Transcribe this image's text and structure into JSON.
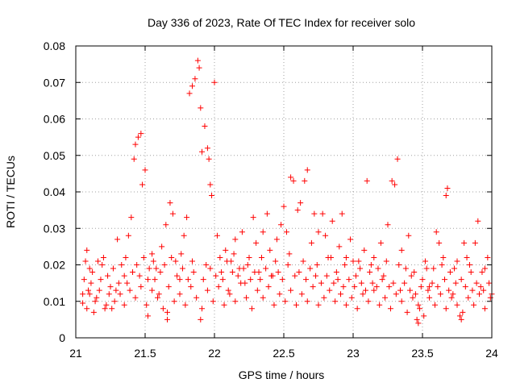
{
  "chart_data": {
    "type": "scatter",
    "title": "Day 336 of 2023, Rate Of TEC Index for receiver solo",
    "xlabel": "GPS time / hours",
    "ylabel": "ROTI / TECUs",
    "xlim": [
      21,
      24
    ],
    "ylim": [
      0,
      0.08
    ],
    "grid": true,
    "marker": "+",
    "color": "#ff0000",
    "xticks": [
      "21",
      "21.5",
      "22",
      "22.5",
      "23",
      "23.5",
      "24"
    ],
    "yticks": [
      "0",
      "0.01",
      "0.02",
      "0.03",
      "0.04",
      "0.05",
      "0.06",
      "0.07",
      "0.08"
    ],
    "series": [
      {
        "name": "ROTI",
        "points": [
          [
            21.05,
            0.0095
          ],
          [
            21.07,
            0.021
          ],
          [
            21.08,
            0.024
          ],
          [
            21.1,
            0.012
          ],
          [
            21.12,
            0.018
          ],
          [
            21.15,
            0.011
          ],
          [
            21.18,
            0.016
          ],
          [
            21.2,
            0.022
          ],
          [
            21.22,
            0.009
          ],
          [
            21.25,
            0.014
          ],
          [
            21.27,
            0.019
          ],
          [
            21.3,
            0.027
          ],
          [
            21.32,
            0.012
          ],
          [
            21.35,
            0.017
          ],
          [
            21.38,
            0.028
          ],
          [
            21.4,
            0.033
          ],
          [
            21.42,
            0.049
          ],
          [
            21.43,
            0.053
          ],
          [
            21.45,
            0.055
          ],
          [
            21.47,
            0.056
          ],
          [
            21.48,
            0.042
          ],
          [
            21.5,
            0.046
          ],
          [
            21.52,
            0.016
          ],
          [
            21.55,
            0.023
          ],
          [
            21.58,
            0.019
          ],
          [
            21.6,
            0.012
          ],
          [
            21.62,
            0.025
          ],
          [
            21.65,
            0.031
          ],
          [
            21.68,
            0.037
          ],
          [
            21.7,
            0.034
          ],
          [
            21.72,
            0.021
          ],
          [
            21.75,
            0.016
          ],
          [
            21.78,
            0.028
          ],
          [
            21.8,
            0.033
          ],
          [
            21.82,
            0.067
          ],
          [
            21.84,
            0.069
          ],
          [
            21.86,
            0.071
          ],
          [
            21.88,
            0.076
          ],
          [
            21.89,
            0.074
          ],
          [
            21.9,
            0.063
          ],
          [
            21.91,
            0.051
          ],
          [
            21.93,
            0.058
          ],
          [
            21.95,
            0.052
          ],
          [
            21.96,
            0.049
          ],
          [
            21.97,
            0.042
          ],
          [
            21.98,
            0.039
          ],
          [
            22.0,
            0.07
          ],
          [
            22.02,
            0.028
          ],
          [
            22.05,
            0.018
          ],
          [
            22.08,
            0.024
          ],
          [
            22.1,
            0.013
          ],
          [
            22.12,
            0.021
          ],
          [
            22.15,
            0.027
          ],
          [
            22.18,
            0.019
          ],
          [
            22.2,
            0.029
          ],
          [
            22.22,
            0.015
          ],
          [
            22.25,
            0.022
          ],
          [
            22.28,
            0.033
          ],
          [
            22.3,
            0.026
          ],
          [
            22.32,
            0.018
          ],
          [
            22.35,
            0.029
          ],
          [
            22.38,
            0.034
          ],
          [
            22.4,
            0.024
          ],
          [
            22.42,
            0.017
          ],
          [
            22.45,
            0.027
          ],
          [
            22.48,
            0.031
          ],
          [
            22.5,
            0.036
          ],
          [
            22.52,
            0.029
          ],
          [
            22.55,
            0.044
          ],
          [
            22.57,
            0.043
          ],
          [
            22.6,
            0.035
          ],
          [
            22.62,
            0.037
          ],
          [
            22.65,
            0.043
          ],
          [
            22.67,
            0.046
          ],
          [
            22.7,
            0.026
          ],
          [
            22.72,
            0.034
          ],
          [
            22.75,
            0.029
          ],
          [
            22.78,
            0.034
          ],
          [
            22.8,
            0.028
          ],
          [
            22.82,
            0.022
          ],
          [
            22.85,
            0.032
          ],
          [
            22.88,
            0.018
          ],
          [
            22.9,
            0.025
          ],
          [
            22.92,
            0.034
          ],
          [
            22.95,
            0.022
          ],
          [
            22.98,
            0.027
          ],
          [
            23.0,
            0.021
          ],
          [
            23.02,
            0.017
          ],
          [
            23.05,
            0.019
          ],
          [
            23.08,
            0.024
          ],
          [
            23.1,
            0.043
          ],
          [
            23.12,
            0.018
          ],
          [
            23.15,
            0.022
          ],
          [
            23.18,
            0.019
          ],
          [
            23.2,
            0.026
          ],
          [
            23.22,
            0.017
          ],
          [
            23.25,
            0.031
          ],
          [
            23.28,
            0.043
          ],
          [
            23.3,
            0.042
          ],
          [
            23.32,
            0.049
          ],
          [
            23.35,
            0.024
          ],
          [
            23.38,
            0.019
          ],
          [
            23.4,
            0.028
          ],
          [
            23.42,
            0.017
          ],
          [
            23.45,
            0.012
          ],
          [
            23.48,
            0.008
          ],
          [
            23.5,
            0.016
          ],
          [
            23.52,
            0.021
          ],
          [
            23.55,
            0.014
          ],
          [
            23.58,
            0.019
          ],
          [
            23.6,
            0.029
          ],
          [
            23.62,
            0.026
          ],
          [
            23.65,
            0.022
          ],
          [
            23.67,
            0.039
          ],
          [
            23.68,
            0.041
          ],
          [
            23.7,
            0.018
          ],
          [
            23.72,
            0.012
          ],
          [
            23.75,
            0.021
          ],
          [
            23.78,
            0.016
          ],
          [
            23.8,
            0.026
          ],
          [
            23.82,
            0.022
          ],
          [
            23.85,
            0.018
          ],
          [
            23.88,
            0.026
          ],
          [
            23.9,
            0.032
          ],
          [
            23.92,
            0.014
          ],
          [
            23.95,
            0.019
          ],
          [
            23.97,
            0.022
          ],
          [
            24.0,
            0.012
          ],
          [
            21.05,
            0.012
          ],
          [
            21.08,
            0.008
          ],
          [
            21.11,
            0.015
          ],
          [
            21.14,
            0.01
          ],
          [
            21.17,
            0.013
          ],
          [
            21.21,
            0.008
          ],
          [
            21.24,
            0.012
          ],
          [
            21.28,
            0.01
          ],
          [
            21.31,
            0.015
          ],
          [
            21.35,
            0.009
          ],
          [
            21.39,
            0.013
          ],
          [
            21.43,
            0.011
          ],
          [
            21.47,
            0.014
          ],
          [
            21.51,
            0.009
          ],
          [
            21.55,
            0.013
          ],
          [
            21.59,
            0.011
          ],
          [
            21.63,
            0.008
          ],
          [
            21.67,
            0.014
          ],
          [
            21.71,
            0.01
          ],
          [
            21.75,
            0.012
          ],
          [
            21.79,
            0.009
          ],
          [
            21.83,
            0.014
          ],
          [
            21.87,
            0.011
          ],
          [
            21.91,
            0.008
          ],
          [
            21.95,
            0.013
          ],
          [
            21.99,
            0.01
          ],
          [
            22.03,
            0.014
          ],
          [
            22.07,
            0.009
          ],
          [
            22.11,
            0.012
          ],
          [
            22.15,
            0.01
          ],
          [
            22.19,
            0.015
          ],
          [
            22.23,
            0.011
          ],
          [
            22.27,
            0.008
          ],
          [
            22.31,
            0.013
          ],
          [
            22.35,
            0.011
          ],
          [
            22.39,
            0.014
          ],
          [
            22.43,
            0.009
          ],
          [
            22.47,
            0.012
          ],
          [
            22.51,
            0.01
          ],
          [
            22.55,
            0.013
          ],
          [
            22.59,
            0.009
          ],
          [
            22.63,
            0.012
          ],
          [
            22.67,
            0.01
          ],
          [
            22.71,
            0.014
          ],
          [
            22.75,
            0.009
          ],
          [
            22.79,
            0.011
          ],
          [
            22.83,
            0.013
          ],
          [
            22.87,
            0.01
          ],
          [
            22.91,
            0.012
          ],
          [
            22.95,
            0.009
          ],
          [
            22.99,
            0.011
          ],
          [
            23.03,
            0.008
          ],
          [
            23.07,
            0.012
          ],
          [
            23.11,
            0.01
          ],
          [
            23.15,
            0.013
          ],
          [
            23.19,
            0.009
          ],
          [
            23.23,
            0.011
          ],
          [
            23.27,
            0.008
          ],
          [
            23.31,
            0.012
          ],
          [
            23.35,
            0.01
          ],
          [
            23.39,
            0.007
          ],
          [
            23.43,
            0.011
          ],
          [
            23.47,
            0.009
          ],
          [
            23.51,
            0.006
          ],
          [
            23.55,
            0.011
          ],
          [
            23.59,
            0.009
          ],
          [
            23.63,
            0.012
          ],
          [
            23.67,
            0.008
          ],
          [
            23.71,
            0.011
          ],
          [
            23.75,
            0.009
          ],
          [
            23.79,
            0.007
          ],
          [
            23.83,
            0.011
          ],
          [
            23.87,
            0.009
          ],
          [
            23.91,
            0.012
          ],
          [
            23.95,
            0.008
          ],
          [
            23.99,
            0.011
          ],
          [
            21.06,
            0.016
          ],
          [
            21.1,
            0.019
          ],
          [
            21.13,
            0.007
          ],
          [
            21.19,
            0.02
          ],
          [
            21.23,
            0.017
          ],
          [
            21.26,
            0.008
          ],
          [
            21.33,
            0.02
          ],
          [
            21.37,
            0.015
          ],
          [
            21.41,
            0.018
          ],
          [
            21.46,
            0.017
          ],
          [
            21.53,
            0.019
          ],
          [
            21.57,
            0.016
          ],
          [
            21.61,
            0.018
          ],
          [
            21.66,
            0.007
          ],
          [
            21.73,
            0.017
          ],
          [
            21.77,
            0.019
          ],
          [
            21.81,
            0.016
          ],
          [
            21.85,
            0.018
          ],
          [
            21.92,
            0.016
          ],
          [
            21.97,
            0.019
          ],
          [
            22.01,
            0.017
          ],
          [
            22.06,
            0.016
          ],
          [
            22.13,
            0.018
          ],
          [
            22.17,
            0.017
          ],
          [
            22.21,
            0.019
          ],
          [
            22.26,
            0.016
          ],
          [
            22.29,
            0.018
          ],
          [
            22.33,
            0.016
          ],
          [
            22.37,
            0.019
          ],
          [
            22.41,
            0.017
          ],
          [
            22.46,
            0.018
          ],
          [
            22.49,
            0.016
          ],
          [
            22.53,
            0.02
          ],
          [
            22.58,
            0.017
          ],
          [
            22.61,
            0.018
          ],
          [
            22.66,
            0.016
          ],
          [
            22.69,
            0.019
          ],
          [
            22.73,
            0.017
          ],
          [
            22.77,
            0.015
          ],
          [
            22.81,
            0.017
          ],
          [
            22.86,
            0.015
          ],
          [
            22.89,
            0.016
          ],
          [
            22.93,
            0.014
          ],
          [
            22.97,
            0.016
          ],
          [
            23.01,
            0.014
          ],
          [
            23.06,
            0.015
          ],
          [
            23.09,
            0.013
          ],
          [
            23.14,
            0.015
          ],
          [
            23.17,
            0.014
          ],
          [
            23.21,
            0.016
          ],
          [
            23.26,
            0.014
          ],
          [
            23.29,
            0.015
          ],
          [
            23.34,
            0.013
          ],
          [
            23.37,
            0.015
          ],
          [
            23.41,
            0.013
          ],
          [
            23.46,
            0.005
          ],
          [
            23.49,
            0.014
          ],
          [
            23.54,
            0.013
          ],
          [
            23.57,
            0.015
          ],
          [
            23.61,
            0.014
          ],
          [
            23.66,
            0.016
          ],
          [
            23.69,
            0.013
          ],
          [
            23.74,
            0.015
          ],
          [
            23.77,
            0.006
          ],
          [
            23.81,
            0.014
          ],
          [
            23.86,
            0.013
          ],
          [
            23.89,
            0.015
          ],
          [
            23.94,
            0.013
          ],
          [
            23.98,
            0.015
          ],
          [
            21.09,
            0.013
          ],
          [
            21.16,
            0.021
          ],
          [
            21.29,
            0.013
          ],
          [
            21.36,
            0.022
          ],
          [
            21.44,
            0.02
          ],
          [
            21.49,
            0.022
          ],
          [
            21.56,
            0.021
          ],
          [
            21.64,
            0.02
          ],
          [
            21.69,
            0.022
          ],
          [
            21.76,
            0.023
          ],
          [
            21.84,
            0.021
          ],
          [
            21.94,
            0.02
          ],
          [
            22.04,
            0.022
          ],
          [
            22.09,
            0.021
          ],
          [
            22.14,
            0.023
          ],
          [
            22.24,
            0.02
          ],
          [
            22.34,
            0.022
          ],
          [
            22.44,
            0.021
          ],
          [
            22.54,
            0.023
          ],
          [
            22.64,
            0.021
          ],
          [
            22.74,
            0.02
          ],
          [
            22.84,
            0.022
          ],
          [
            22.94,
            0.02
          ],
          [
            23.04,
            0.021
          ],
          [
            23.13,
            0.02
          ],
          [
            23.24,
            0.021
          ],
          [
            23.33,
            0.02
          ],
          [
            23.44,
            0.018
          ],
          [
            23.53,
            0.019
          ],
          [
            23.64,
            0.02
          ],
          [
            23.73,
            0.019
          ],
          [
            23.84,
            0.02
          ],
          [
            23.93,
            0.018
          ],
          [
            21.9,
            0.005
          ],
          [
            21.66,
            0.005
          ],
          [
            23.47,
            0.004
          ],
          [
            23.78,
            0.005
          ],
          [
            21.52,
            0.006
          ]
        ]
      }
    ]
  }
}
